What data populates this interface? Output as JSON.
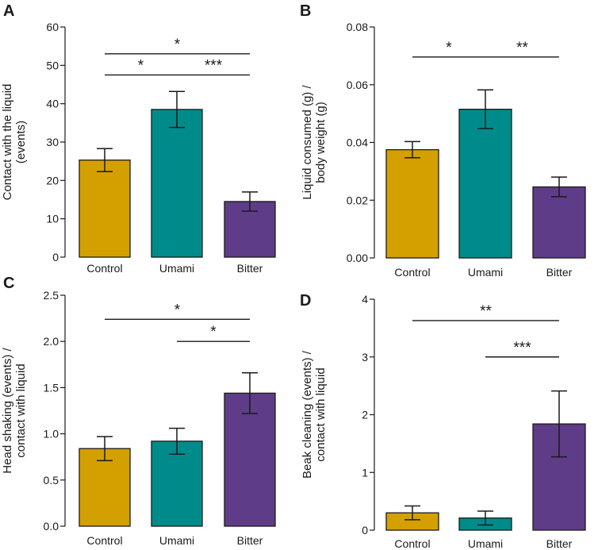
{
  "colors": {
    "Control": "#D4A000",
    "Umami": "#008B8B",
    "Bitter": "#5E3C87"
  },
  "chart_data": [
    {
      "panel": "A",
      "type": "bar",
      "ylabel_lines": [
        "Contact with the liquid",
        "(events)"
      ],
      "categories": [
        "Control",
        "Umami",
        "Bitter"
      ],
      "values": [
        25.3,
        38.5,
        14.5
      ],
      "errors": [
        3.0,
        4.7,
        2.5
      ],
      "ylim": [
        0,
        60
      ],
      "yticks": [
        0,
        10,
        20,
        30,
        40,
        50,
        60
      ],
      "tick_labels": [
        "0",
        "10",
        "20",
        "30",
        "40",
        "50",
        "60"
      ],
      "significance": [
        {
          "from": 0,
          "to": 2,
          "label": "*",
          "level": 53.0
        },
        {
          "from": 0,
          "to": 1,
          "label": "*",
          "level": 47.5
        },
        {
          "from": 1,
          "to": 2,
          "label": "***",
          "level": 47.5
        }
      ]
    },
    {
      "panel": "B",
      "type": "bar",
      "ylabel_lines": [
        "Liquid consumed (g) /",
        "body weight (g)"
      ],
      "categories": [
        "Control",
        "Umami",
        "Bitter"
      ],
      "values": [
        0.0375,
        0.0515,
        0.0246
      ],
      "errors": [
        0.0028,
        0.0067,
        0.0034
      ],
      "ylim": [
        0,
        0.08
      ],
      "yticks": [
        0,
        0.02,
        0.04,
        0.06,
        0.08
      ],
      "tick_labels": [
        "0.00",
        "0.02",
        "0.04",
        "0.06",
        "0.08"
      ],
      "significance": [
        {
          "from": 0,
          "to": 1,
          "label": "*",
          "level": 0.0696
        },
        {
          "from": 1,
          "to": 2,
          "label": "**",
          "level": 0.0696
        }
      ]
    },
    {
      "panel": "C",
      "type": "bar",
      "ylabel_lines": [
        "Head shaking (events) /",
        "contact with liquid"
      ],
      "categories": [
        "Control",
        "Umami",
        "Bitter"
      ],
      "values": [
        0.84,
        0.92,
        1.44
      ],
      "errors": [
        0.13,
        0.14,
        0.22
      ],
      "ylim": [
        0,
        2.5
      ],
      "yticks": [
        0,
        0.5,
        1.0,
        1.5,
        2.0,
        2.5
      ],
      "tick_labels": [
        "0.0",
        "0.5",
        "1.0",
        "1.5",
        "2.0",
        "2.5"
      ],
      "significance": [
        {
          "from": 0,
          "to": 2,
          "label": "*",
          "level": 2.24
        },
        {
          "from": 1,
          "to": 2,
          "label": "*",
          "level": 2.0
        }
      ]
    },
    {
      "panel": "D",
      "type": "bar",
      "ylabel_lines": [
        "Beak cleaning (events) /",
        "contact with liquid"
      ],
      "categories": [
        "Control",
        "Umami",
        "Bitter"
      ],
      "values": [
        0.3,
        0.21,
        1.84
      ],
      "errors": [
        0.12,
        0.12,
        0.57
      ],
      "ylim": [
        0,
        4
      ],
      "yticks": [
        0,
        1,
        2,
        3,
        4
      ],
      "tick_labels": [
        "0",
        "1",
        "2",
        "3",
        "4"
      ],
      "significance": [
        {
          "from": 0,
          "to": 2,
          "label": "**",
          "level": 3.63
        },
        {
          "from": 1,
          "to": 2,
          "label": "***",
          "level": 3.0
        }
      ]
    }
  ]
}
